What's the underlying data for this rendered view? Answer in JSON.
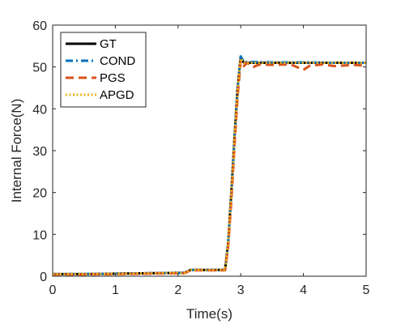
{
  "chart_data": {
    "type": "line",
    "title": "",
    "xlabel": "Time(s)",
    "ylabel": "Internal Force(N)",
    "xlim": [
      0,
      5
    ],
    "ylim": [
      0,
      60
    ],
    "xticks": [
      "0",
      "1",
      "2",
      "3",
      "4",
      "5"
    ],
    "yticks": [
      "0",
      "10",
      "20",
      "30",
      "40",
      "50",
      "60"
    ],
    "grid": false,
    "legend_position": "top-left",
    "series": [
      {
        "name": "GT",
        "color": "#000000",
        "dash": "solid",
        "x": [
          0,
          0.5,
          1.0,
          1.5,
          2.0,
          2.1,
          2.2,
          2.4,
          2.6,
          2.75,
          2.8,
          2.85,
          2.9,
          2.95,
          3.0,
          3.05,
          3.2,
          3.5,
          4.0,
          4.5,
          5.0
        ],
        "y": [
          0.5,
          0.5,
          0.6,
          0.7,
          0.8,
          0.8,
          1.5,
          1.5,
          1.5,
          1.5,
          8,
          20,
          33,
          45,
          52.5,
          51,
          51,
          51,
          51,
          51,
          51
        ]
      },
      {
        "name": "COND",
        "color": "#0072BD",
        "dash": "dashdot",
        "x": [
          0,
          0.5,
          1.0,
          1.5,
          2.0,
          2.1,
          2.2,
          2.4,
          2.6,
          2.75,
          2.8,
          2.85,
          2.9,
          2.95,
          3.0,
          3.05,
          3.2,
          3.5,
          4.0,
          4.5,
          5.0
        ],
        "y": [
          0.5,
          0.5,
          0.6,
          0.7,
          0.8,
          0.8,
          1.5,
          1.5,
          1.5,
          1.5,
          8,
          20,
          33,
          45,
          52.5,
          51.2,
          51.2,
          51.1,
          51.1,
          51.0,
          51.0
        ]
      },
      {
        "name": "PGS",
        "color": "#D95319",
        "dash": "dashed",
        "x": [
          0,
          0.5,
          1.0,
          1.5,
          2.0,
          2.1,
          2.2,
          2.4,
          2.6,
          2.75,
          2.8,
          2.85,
          2.9,
          2.95,
          3.0,
          3.05,
          3.1,
          3.2,
          3.3,
          3.5,
          3.8,
          4.0,
          4.1,
          4.3,
          4.5,
          4.8,
          5.0
        ],
        "y": [
          0.4,
          0.4,
          0.5,
          0.6,
          0.7,
          0.7,
          1.4,
          1.4,
          1.4,
          1.4,
          7,
          18,
          31,
          43,
          51.5,
          50.2,
          51,
          50,
          50.6,
          50.5,
          50.6,
          49.3,
          50.3,
          50.6,
          50.2,
          50.5,
          50.3
        ]
      },
      {
        "name": "APGD",
        "color": "#EDB120",
        "dash": "dotted",
        "x": [
          0,
          0.5,
          1.0,
          1.5,
          2.0,
          2.1,
          2.2,
          2.4,
          2.6,
          2.75,
          2.8,
          2.85,
          2.9,
          2.95,
          3.0,
          3.05,
          3.2,
          3.5,
          4.0,
          4.5,
          5.0
        ],
        "y": [
          0.5,
          0.5,
          0.6,
          0.7,
          0.8,
          0.8,
          1.5,
          1.5,
          1.5,
          1.5,
          8,
          20,
          33,
          45,
          52,
          51,
          51,
          51,
          51,
          51,
          51
        ]
      }
    ]
  }
}
